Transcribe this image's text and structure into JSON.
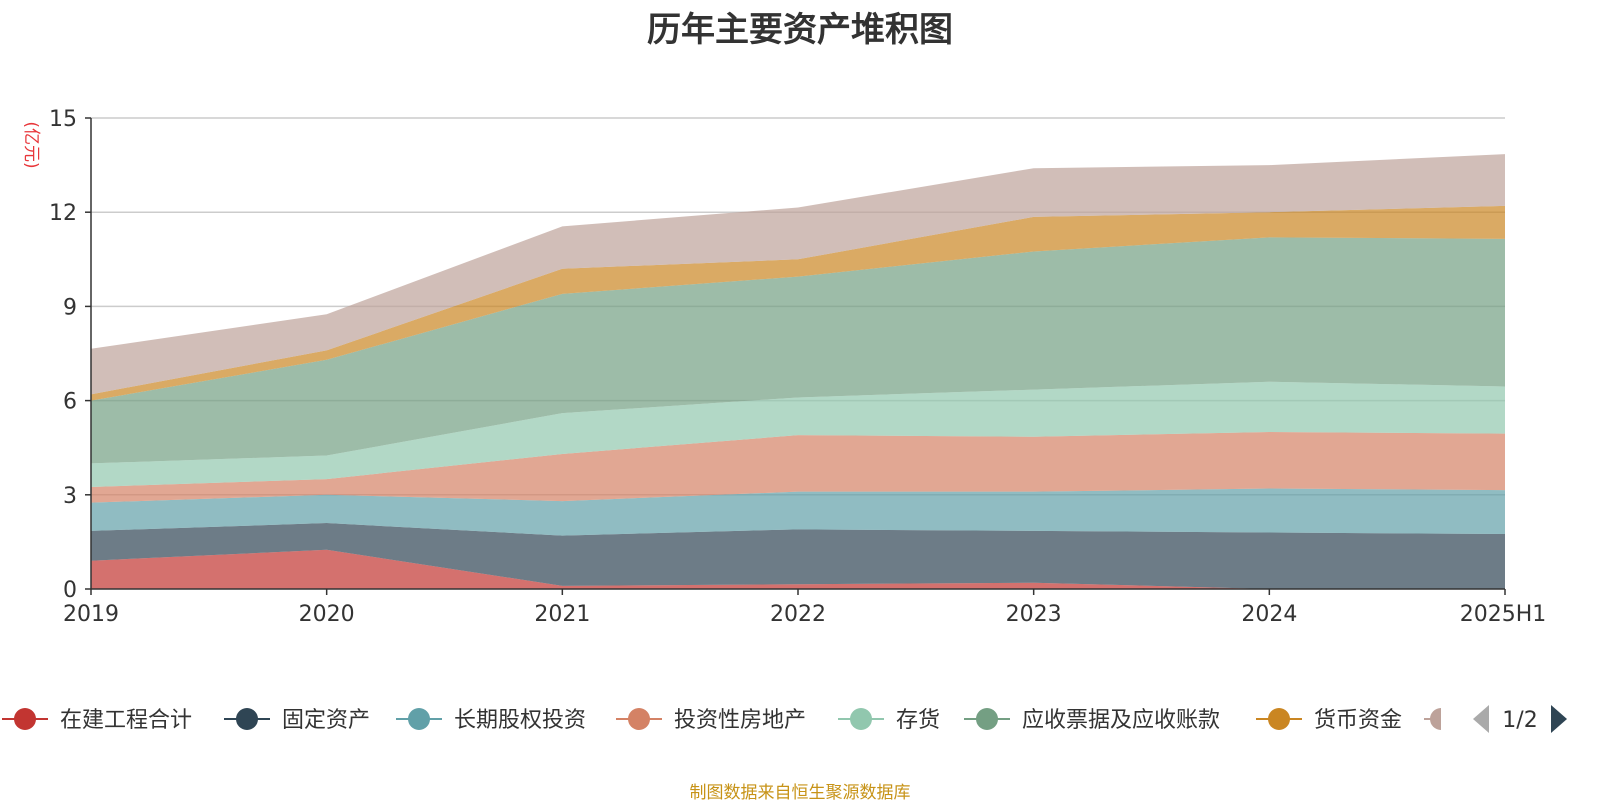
{
  "chart_data": {
    "type": "area",
    "title": "历年主要资产堆积图",
    "ylabel": "(亿元)",
    "xlabel": "",
    "categories": [
      "2019",
      "2020",
      "2021",
      "2022",
      "2023",
      "2024",
      "2025H1"
    ],
    "ylim": [
      0,
      15
    ],
    "yticks": [
      "0",
      "3",
      "6",
      "9",
      "12",
      "15"
    ],
    "stacked": true,
    "grid": true,
    "legend_position": "bottom",
    "series": [
      {
        "name": "在建工程合计",
        "color": "#c23531",
        "values": [
          0.9,
          1.25,
          0.1,
          0.15,
          0.2,
          0.0,
          0.0
        ]
      },
      {
        "name": "固定资产",
        "color": "#2f4554",
        "values": [
          0.95,
          0.85,
          1.6,
          1.75,
          1.65,
          1.8,
          1.75
        ]
      },
      {
        "name": "长期股权投资",
        "color": "#61a0a8",
        "values": [
          0.9,
          0.9,
          1.1,
          1.2,
          1.25,
          1.4,
          1.4
        ]
      },
      {
        "name": "投资性房地产",
        "color": "#d48265",
        "values": [
          0.5,
          0.5,
          1.5,
          1.8,
          1.75,
          1.8,
          1.8
        ]
      },
      {
        "name": "存货",
        "color": "#91c7ae",
        "values": [
          0.75,
          0.75,
          1.3,
          1.2,
          1.5,
          1.6,
          1.5
        ]
      },
      {
        "name": "应收票据及应收账款",
        "color": "#749f83",
        "values": [
          2.0,
          3.05,
          3.8,
          3.85,
          4.4,
          4.6,
          4.7
        ]
      },
      {
        "name": "货币资金",
        "color": "#ca8622",
        "values": [
          0.2,
          0.3,
          0.8,
          0.55,
          1.1,
          0.8,
          1.05
        ]
      },
      {
        "name": "",
        "color": "#bda29a",
        "values": [
          1.45,
          1.15,
          1.35,
          1.65,
          1.55,
          1.5,
          1.65
        ]
      }
    ]
  },
  "legend": {
    "page_indicator": "1/2",
    "visible_items": [
      "在建工程合计",
      "固定资产",
      "长期股权投资",
      "投资性房地产",
      "存货",
      "应收票据及应收账款",
      "货币资金"
    ]
  },
  "footer": {
    "source_note": "制图数据来自恒生聚源数据库"
  }
}
